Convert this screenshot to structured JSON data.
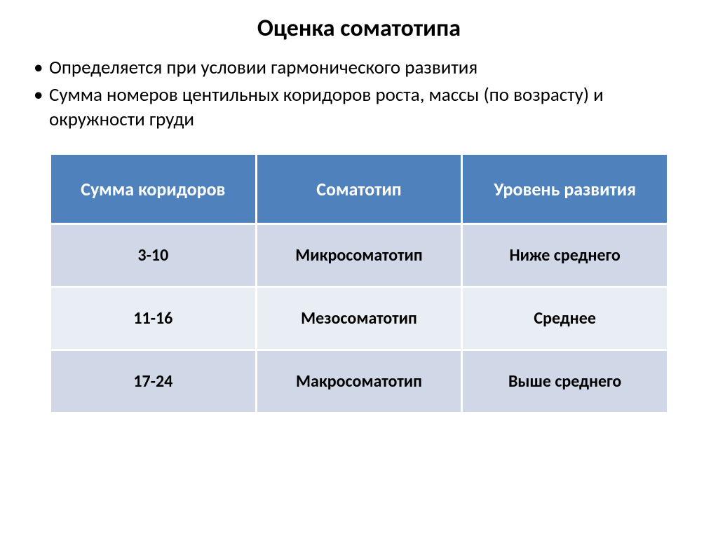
{
  "title": {
    "text": "Оценка соматотипа",
    "fontsize": 34,
    "color": "#000000"
  },
  "bullets": {
    "fontsize": 27,
    "color": "#000000",
    "items": [
      "Определяется при условии гармонического развития",
      "Сумма номеров центильных коридоров роста, массы (по возрасту) и окружности груди"
    ]
  },
  "table": {
    "header_bg": "#4f81bd",
    "header_fg": "#ffffff",
    "row_alt_bg_a": "#d0d8e8",
    "row_alt_bg_b": "#e9edf4",
    "border_color": "#ffffff",
    "header_fontsize": 26,
    "cell_fontsize": 24,
    "row_height_header": 100,
    "row_height_body": 90,
    "columns": [
      "Сумма коридоров",
      "Соматотип",
      "Уровень развития"
    ],
    "rows": [
      [
        "3-10",
        "Микросоматотип",
        "Ниже среднего"
      ],
      [
        "11-16",
        "Мезосоматотип",
        "Среднее"
      ],
      [
        "17-24",
        "Макросоматотип",
        "Выше среднего"
      ]
    ]
  }
}
